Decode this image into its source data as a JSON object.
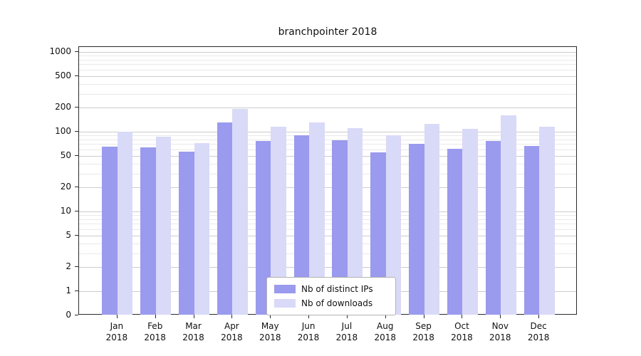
{
  "title": "branchpointer 2018",
  "legend": {
    "items": [
      {
        "label": "Nb of distinct IPs",
        "color": "#9a9aee"
      },
      {
        "label": "Nb of downloads",
        "color": "#d9d9f8"
      }
    ]
  },
  "chart_data": {
    "type": "bar",
    "title": "branchpointer 2018",
    "categories": [
      "Jan 2018",
      "Feb 2018",
      "Mar 2018",
      "Apr 2018",
      "May 2018",
      "Jun 2018",
      "Jul 2018",
      "Aug 2018",
      "Sep 2018",
      "Oct 2018",
      "Nov 2018",
      "Dec 2018"
    ],
    "series": [
      {
        "name": "Nb of distinct IPs",
        "color": "#9a9aee",
        "values": [
          65,
          63,
          56,
          130,
          77,
          90,
          78,
          55,
          70,
          61,
          77,
          66
        ]
      },
      {
        "name": "Nb of downloads",
        "color": "#d9d9f8",
        "values": [
          100,
          87,
          72,
          195,
          115,
          130,
          110,
          90,
          125,
          108,
          160,
          115
        ]
      }
    ],
    "xlabel": "",
    "ylabel": "",
    "yscale": "symlog",
    "yticks": [
      0,
      1,
      2,
      5,
      10,
      20,
      50,
      100,
      200,
      500,
      1000
    ],
    "ylim": [
      0,
      1300
    ],
    "grid": true,
    "legend_position": "lower center"
  }
}
